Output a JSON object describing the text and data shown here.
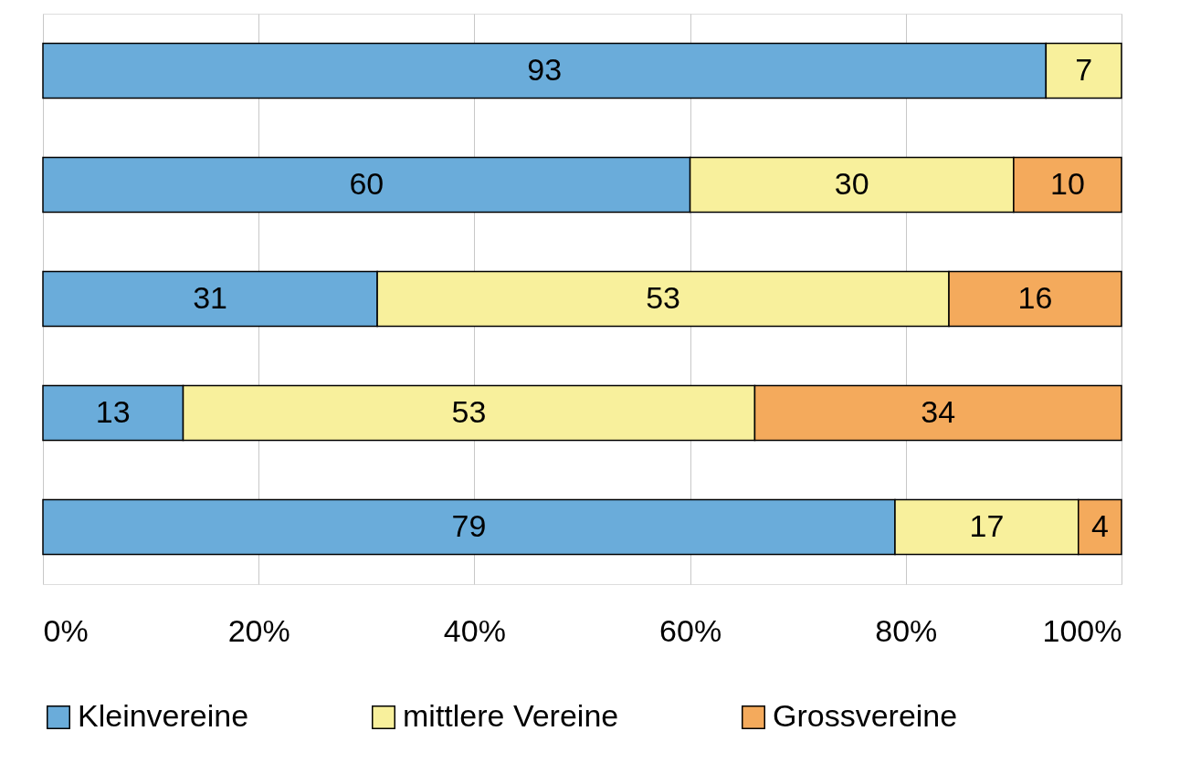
{
  "chart_data": {
    "type": "bar",
    "orientation": "horizontal",
    "stacked": true,
    "data_labels": true,
    "grid": "x",
    "legend": "bottom",
    "tick_labels": "x",
    "categories": [
      null,
      null,
      null,
      null,
      null
    ],
    "series": [
      {
        "name": "Kleinvereine",
        "color": "#6aacda",
        "values": [
          93,
          60,
          31,
          13,
          79
        ]
      },
      {
        "name": "mittlere Vereine",
        "color": "#f8f09c",
        "values": [
          7,
          30,
          53,
          53,
          17
        ]
      },
      {
        "name": "Grossvereine",
        "color": "#f4aa5c",
        "values": [
          null,
          10,
          16,
          34,
          4
        ]
      }
    ],
    "xlim": [
      0,
      100
    ],
    "xticks": [
      {
        "value": 0,
        "label": "0%"
      },
      {
        "value": 20,
        "label": "20%"
      },
      {
        "value": 40,
        "label": "40%"
      },
      {
        "value": 60,
        "label": "60%"
      },
      {
        "value": 80,
        "label": "80%"
      },
      {
        "value": 100,
        "label": "100%"
      }
    ]
  }
}
